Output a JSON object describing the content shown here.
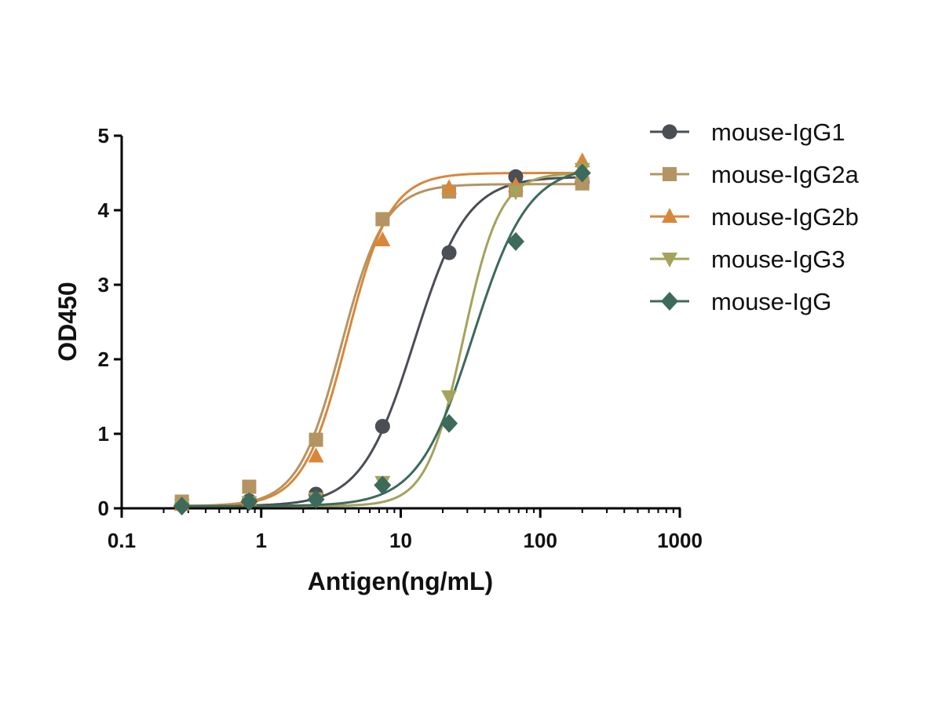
{
  "chart_data": {
    "type": "scatter",
    "xlabel": "Antigen(ng/mL)",
    "ylabel": "OD450",
    "x_scale": "log",
    "xlim": [
      0.1,
      1000
    ],
    "ylim": [
      0,
      5
    ],
    "x_ticks": [
      "0.1",
      "1",
      "10",
      "100",
      "1000"
    ],
    "y_ticks": [
      "0",
      "1",
      "2",
      "3",
      "4",
      "5"
    ],
    "grid": false,
    "legend_position": "top-right",
    "series": [
      {
        "name": "mouse-IgG1",
        "color": "#4a4e55",
        "marker": "circle",
        "x": [
          0.27,
          0.82,
          2.47,
          7.41,
          22.2,
          66.7,
          200
        ],
        "y": [
          0.05,
          0.1,
          0.19,
          1.1,
          3.43,
          4.45,
          4.38
        ],
        "fit": {
          "bottom": 0.03,
          "top": 4.45,
          "ec50": 12.5,
          "hill": 2.3
        }
      },
      {
        "name": "mouse-IgG2a",
        "color": "#b49462",
        "marker": "square",
        "x": [
          0.27,
          0.82,
          2.47,
          7.41,
          22.2,
          66.7,
          200
        ],
        "y": [
          0.09,
          0.29,
          0.92,
          3.88,
          4.25,
          4.27,
          4.36
        ],
        "fit": {
          "bottom": 0.03,
          "top": 4.35,
          "ec50": 3.75,
          "hill": 2.8
        }
      },
      {
        "name": "mouse-IgG2b",
        "color": "#d8873a",
        "marker": "triangle",
        "x": [
          0.27,
          0.82,
          2.47,
          7.41,
          22.2,
          66.7,
          200
        ],
        "y": [
          0.05,
          0.12,
          0.7,
          3.6,
          4.3,
          4.33,
          4.66
        ],
        "fit": {
          "bottom": 0.03,
          "top": 4.5,
          "ec50": 4.1,
          "hill": 2.8
        }
      },
      {
        "name": "mouse-IgG3",
        "color": "#a3a35c",
        "marker": "triangle-down",
        "x": [
          0.27,
          0.82,
          2.47,
          7.41,
          22.2,
          66.7,
          200
        ],
        "y": [
          0.04,
          0.08,
          0.13,
          0.35,
          1.5,
          4.25,
          4.55
        ],
        "fit": {
          "bottom": 0.03,
          "top": 4.5,
          "ec50": 28,
          "hill": 3.3
        }
      },
      {
        "name": "mouse-IgG",
        "color": "#3c6a5b",
        "marker": "diamond",
        "x": [
          0.27,
          0.82,
          2.47,
          7.41,
          22.2,
          66.7,
          200
        ],
        "y": [
          0.03,
          0.09,
          0.12,
          0.31,
          1.14,
          3.58,
          4.5
        ],
        "fit": {
          "bottom": 0.03,
          "top": 4.6,
          "ec50": 33,
          "hill": 2.2
        }
      }
    ]
  }
}
